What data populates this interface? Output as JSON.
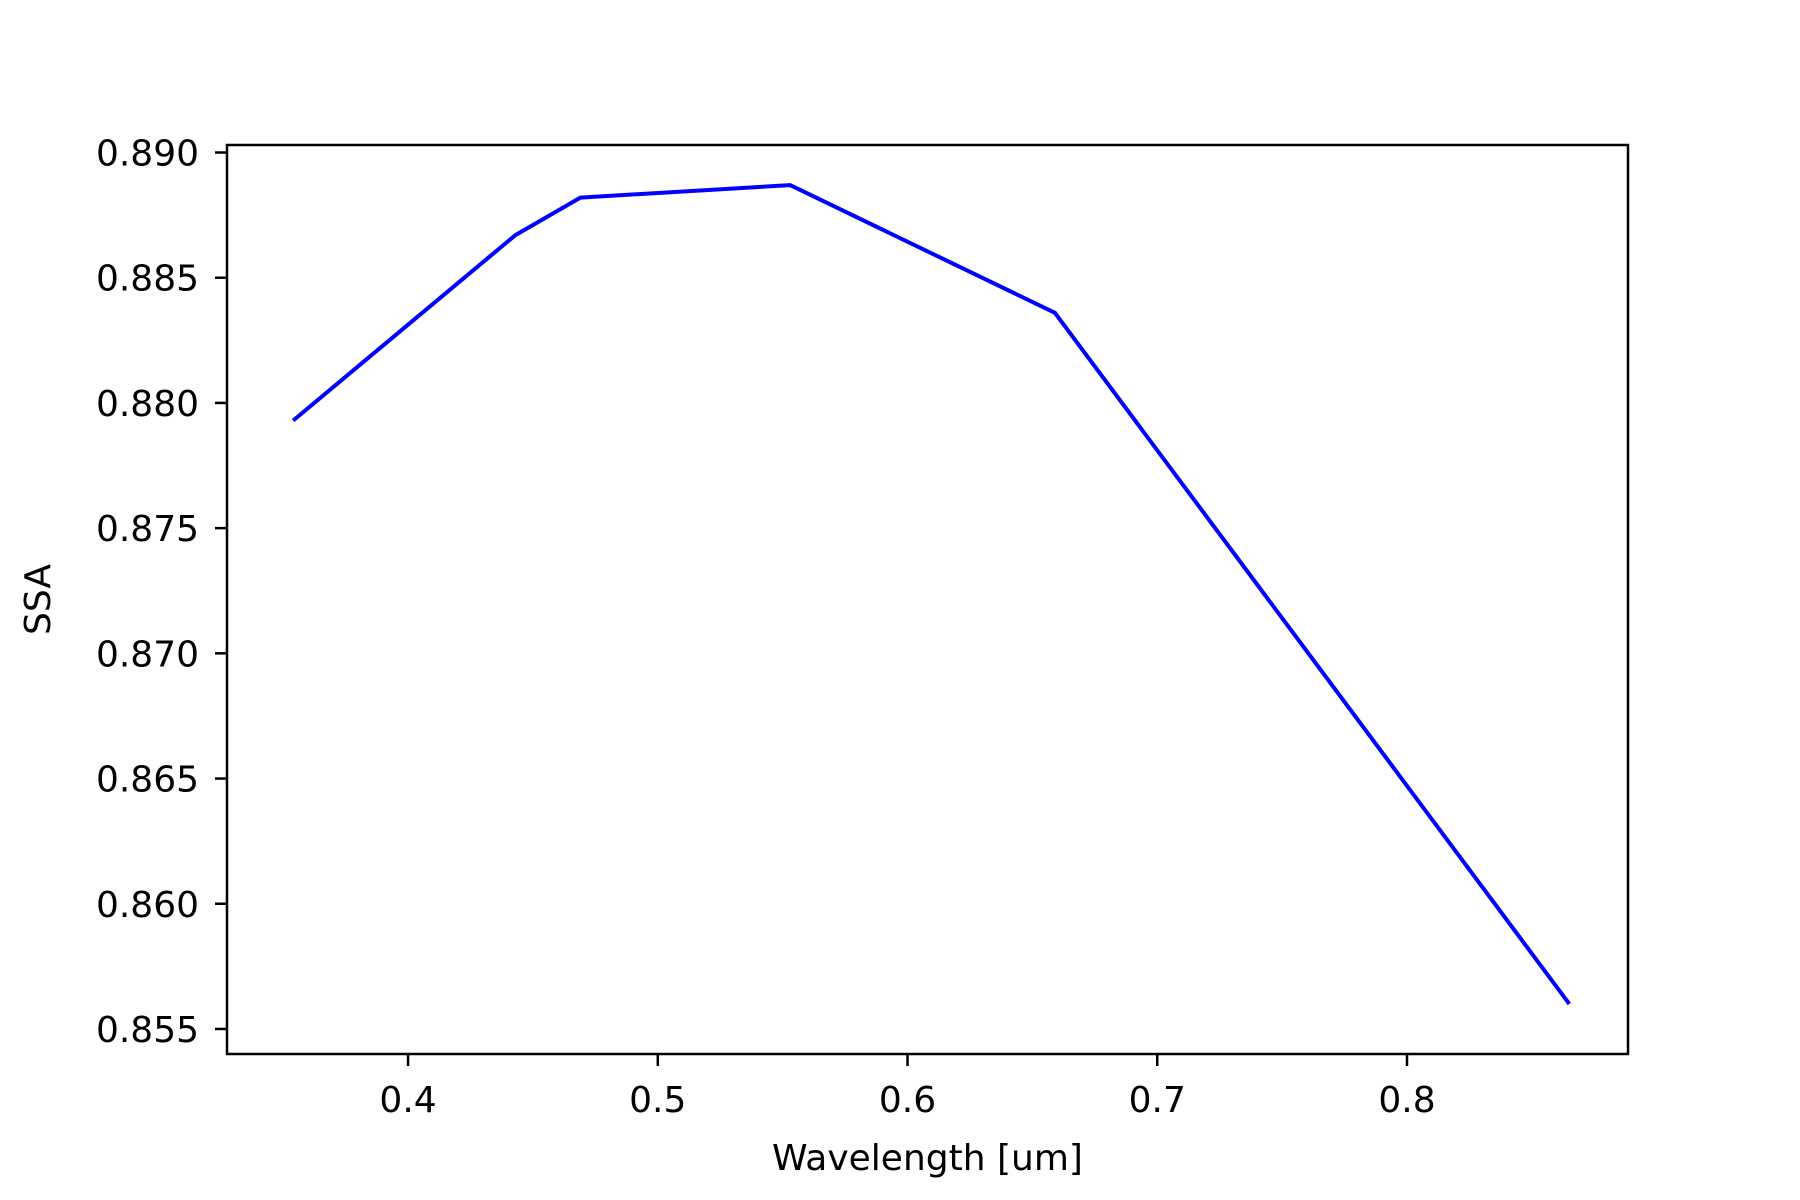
{
  "chart_data": {
    "type": "line",
    "title": "",
    "xlabel": "Wavelength [um]",
    "ylabel": "SSA",
    "xlim": [
      0.3275,
      0.8885
    ],
    "ylim": [
      0.854,
      0.8903
    ],
    "xticks": [
      0.4,
      0.5,
      0.6,
      0.7,
      0.8
    ],
    "xtick_labels": [
      "0.4",
      "0.5",
      "0.6",
      "0.7",
      "0.8"
    ],
    "yticks": [
      0.855,
      0.86,
      0.865,
      0.87,
      0.875,
      0.88,
      0.885,
      0.89
    ],
    "ytick_labels": [
      "0.855",
      "0.860",
      "0.865",
      "0.870",
      "0.875",
      "0.880",
      "0.885",
      "0.890"
    ],
    "grid": false,
    "legend": "none",
    "series": [
      {
        "color": "#0000ff",
        "x": [
          0.354,
          0.443,
          0.469,
          0.553,
          0.659,
          0.865
        ],
        "y": [
          0.8793,
          0.8867,
          0.8882,
          0.8887,
          0.8836,
          0.856
        ]
      }
    ]
  }
}
